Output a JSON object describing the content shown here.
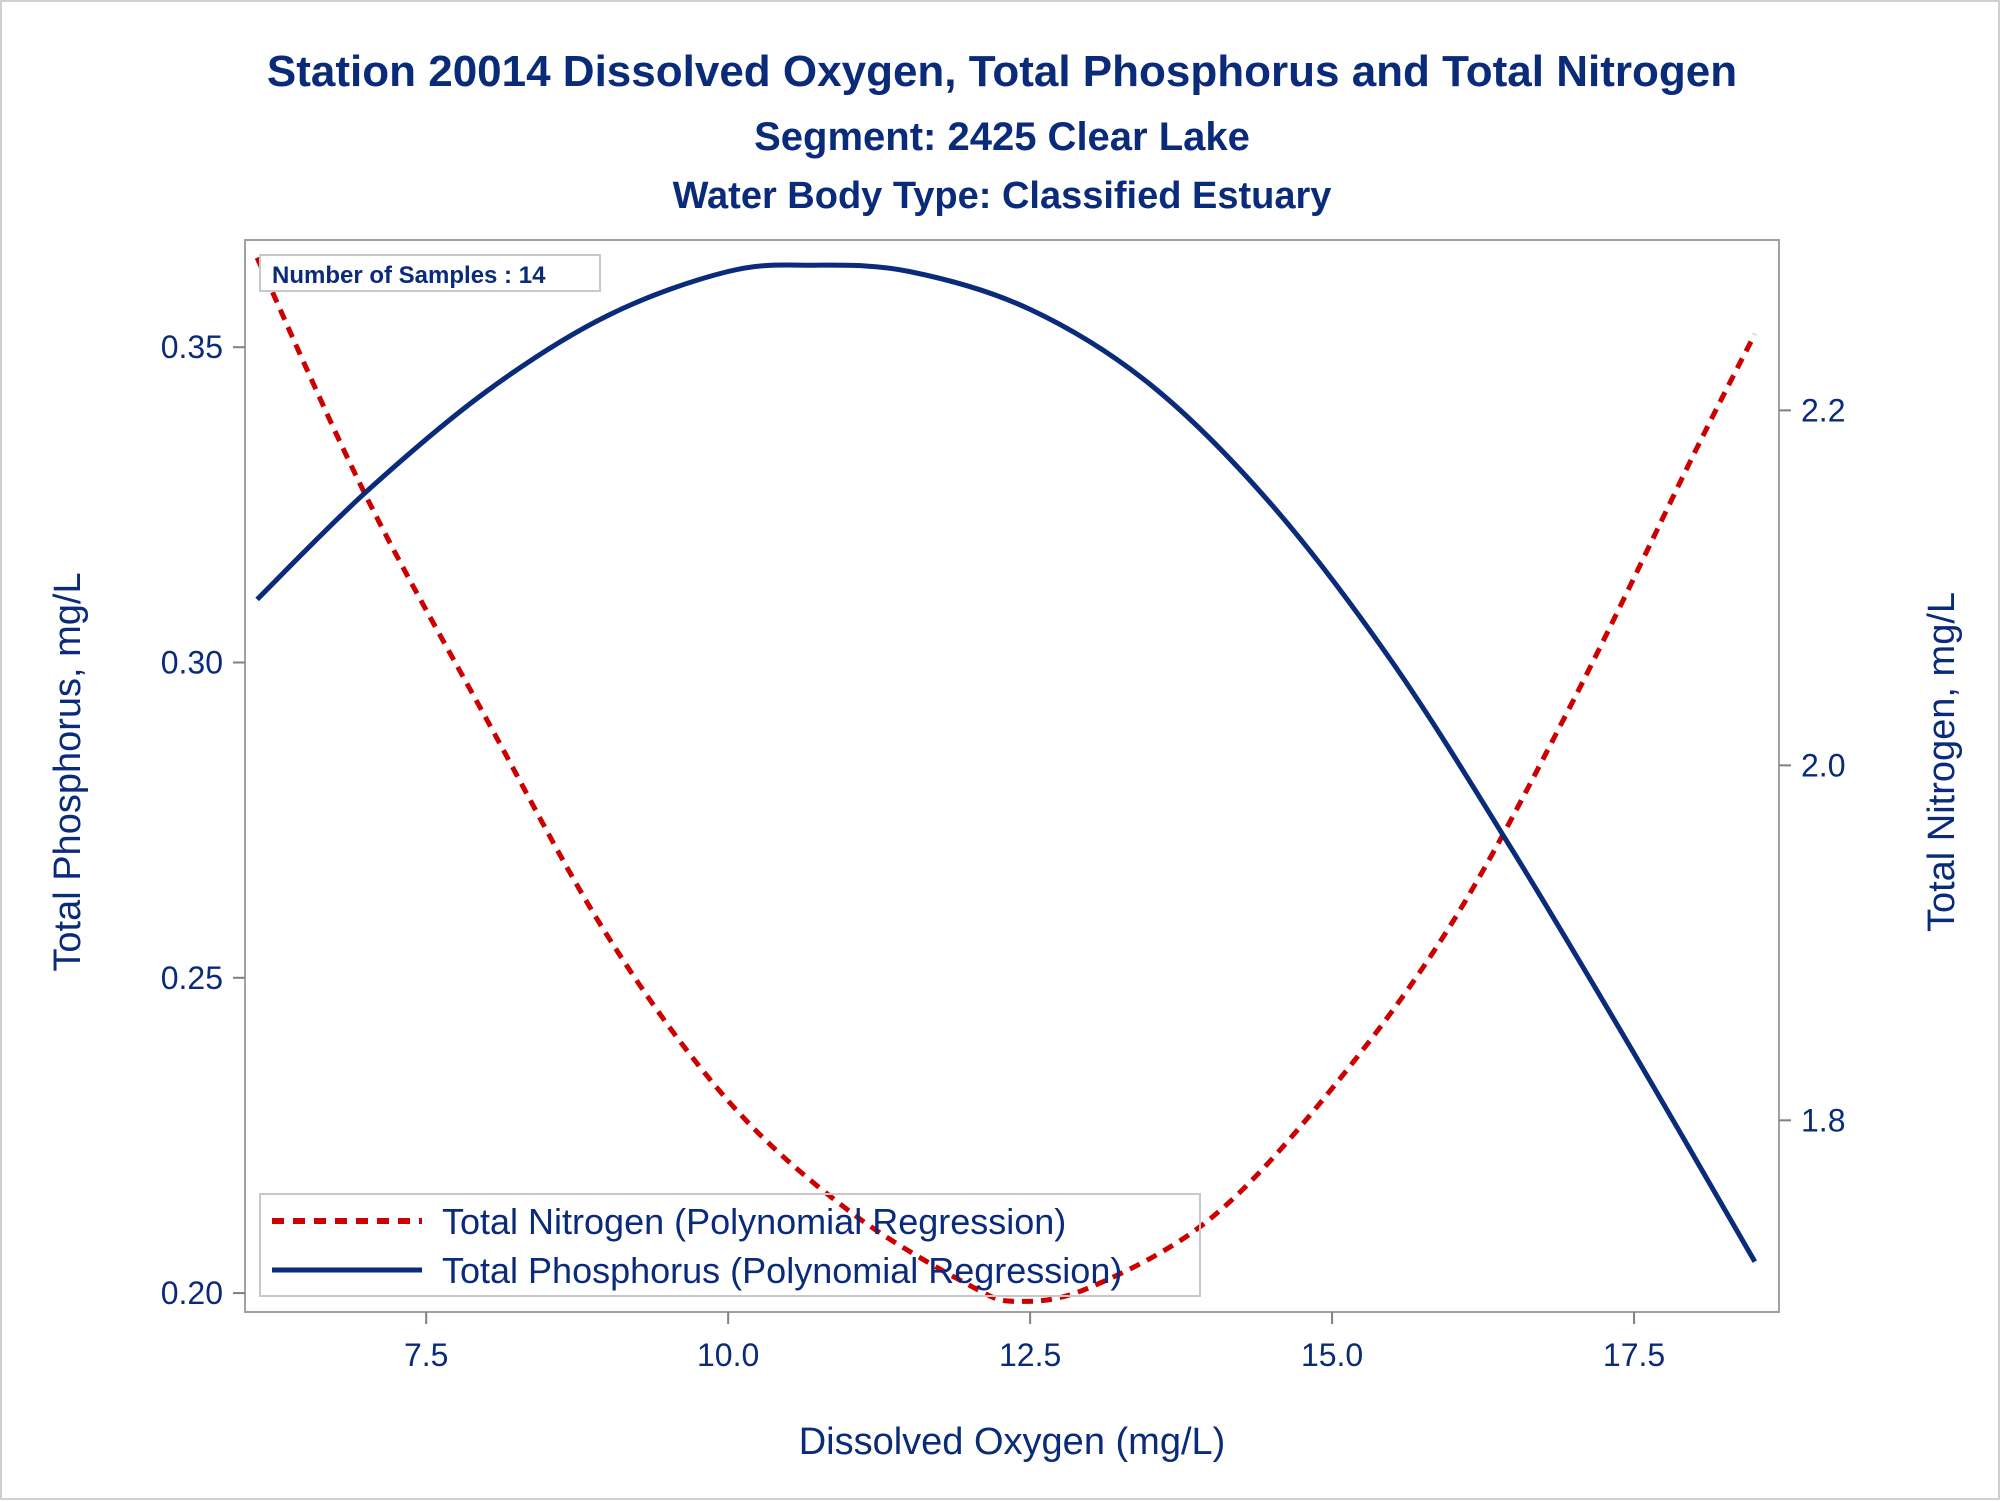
{
  "chart_data": {
    "type": "line",
    "title": "Station 20014  Dissolved Oxygen, Total Phosphorus and Total Nitrogen",
    "subtitle": "Segment: 2425  Clear Lake",
    "subtitle2": "Water Body Type: Classified Estuary",
    "xlabel": "Dissolved Oxygen (mg/L)",
    "ylabel": "Total Phosphorus, mg/L",
    "y2label": "Total Nitrogen, mg/L",
    "xlim": [
      6.0,
      18.7
    ],
    "ylim": [
      0.197,
      0.367
    ],
    "y2lim": [
      1.692,
      2.296
    ],
    "xticks": [
      7.5,
      10.0,
      12.5,
      15.0,
      17.5
    ],
    "xtick_labels": [
      "7.5",
      "10.0",
      "12.5",
      "15.0",
      "17.5"
    ],
    "yticks": [
      0.2,
      0.25,
      0.3,
      0.35
    ],
    "ytick_labels": [
      "0.20",
      "0.25",
      "0.30",
      "0.35"
    ],
    "y2ticks": [
      1.8,
      2.0,
      2.2
    ],
    "y2tick_labels": [
      "1.8",
      "2.0",
      "2.2"
    ],
    "grid": false,
    "legend_position": "bottom-left",
    "annotation": "Number of Samples : 14",
    "series": [
      {
        "name": "Total Nitrogen (Polynomial Regression)",
        "axis": "right",
        "color": "#cc0000",
        "style": "dashed",
        "x": [
          6.1,
          7.0,
          8.0,
          9.0,
          10.0,
          11.0,
          12.0,
          12.4,
          13.0,
          14.0,
          15.0,
          16.0,
          17.0,
          18.0,
          18.5
        ],
        "y": [
          2.286,
          2.152,
          2.026,
          1.904,
          1.811,
          1.749,
          1.707,
          1.698,
          1.706,
          1.745,
          1.818,
          1.912,
          2.037,
          2.176,
          2.243
        ]
      },
      {
        "name": "Total Phosphorus (Polynomial Regression)",
        "axis": "left",
        "color": "#0a2a7a",
        "style": "solid",
        "x": [
          6.1,
          7.0,
          8.0,
          9.0,
          10.0,
          10.7,
          11.5,
          12.5,
          13.5,
          14.5,
          15.5,
          16.5,
          17.5,
          18.5
        ],
        "y": [
          0.31,
          0.327,
          0.343,
          0.355,
          0.362,
          0.363,
          0.362,
          0.356,
          0.344,
          0.325,
          0.3,
          0.27,
          0.238,
          0.205
        ]
      }
    ]
  }
}
